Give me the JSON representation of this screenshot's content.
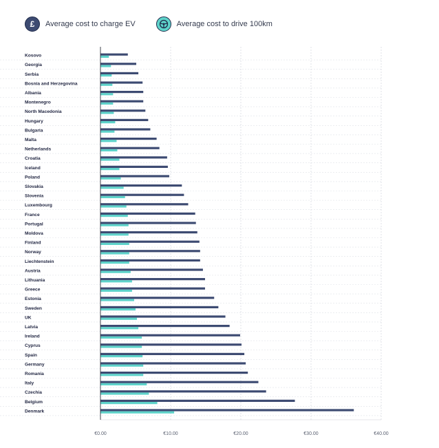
{
  "legend": {
    "charge": {
      "label": "Average cost to charge EV",
      "icon": "pound-coin-icon",
      "color": "#3d4b72"
    },
    "drive": {
      "label": "Average cost to drive 100km",
      "icon": "steering-wheel-icon",
      "color": "#5ed3ca"
    }
  },
  "chart_data": {
    "type": "bar",
    "orientation": "horizontal",
    "title": "",
    "xlabel": "",
    "ylabel": "",
    "xlim": [
      0,
      40
    ],
    "ticks": [
      0,
      10,
      20,
      30,
      40
    ],
    "tick_labels": [
      "€0.00",
      "€10.00",
      "€20.00",
      "€30.00",
      "€40.00"
    ],
    "grid": true,
    "legend_position": "top-left",
    "categories": [
      "Kosovo",
      "Georgia",
      "Serbia",
      "Bosnia and Herzegovina",
      "Albania",
      "Montenegro",
      "North Macedonia",
      "Hungary",
      "Bulgaria",
      "Malta",
      "Netherlands",
      "Croatia",
      "Iceland",
      "Poland",
      "Slovakia",
      "Slovenia",
      "Luxembourg",
      "France",
      "Portugal",
      "Moldova",
      "Finland",
      "Norway",
      "Liechtenstein",
      "Austria",
      "Lithuania",
      "Greece",
      "Estonia",
      "Sweden",
      "UK",
      "Latvia",
      "Ireland",
      "Cyprus",
      "Spain",
      "Germany",
      "Romania",
      "Italy",
      "Czechia",
      "Belgium",
      "Denmark"
    ],
    "series": [
      {
        "name": "Average cost to charge EV",
        "color": "#3d4b72",
        "values": [
          3.9,
          5.1,
          5.4,
          6.0,
          6.1,
          6.1,
          6.4,
          6.8,
          7.1,
          8.0,
          8.4,
          9.5,
          9.6,
          9.8,
          11.6,
          11.9,
          12.5,
          13.5,
          13.6,
          13.8,
          14.1,
          14.2,
          14.2,
          14.6,
          14.9,
          14.9,
          16.2,
          16.8,
          17.8,
          18.4,
          19.9,
          20.1,
          20.5,
          20.7,
          21.0,
          22.5,
          23.6,
          27.7,
          36.1
        ]
      },
      {
        "name": "Average cost to drive 100km",
        "color": "#5ed3ca",
        "values": [
          1.2,
          1.5,
          1.6,
          1.7,
          1.8,
          1.8,
          1.9,
          2.1,
          2.0,
          2.3,
          2.4,
          2.7,
          2.7,
          2.9,
          3.3,
          3.5,
          3.7,
          3.9,
          4.0,
          4.0,
          4.1,
          4.1,
          4.1,
          4.3,
          4.5,
          4.5,
          4.8,
          5.0,
          5.2,
          5.4,
          5.9,
          5.9,
          6.0,
          6.1,
          6.1,
          6.6,
          6.9,
          8.1,
          10.5
        ]
      }
    ]
  }
}
